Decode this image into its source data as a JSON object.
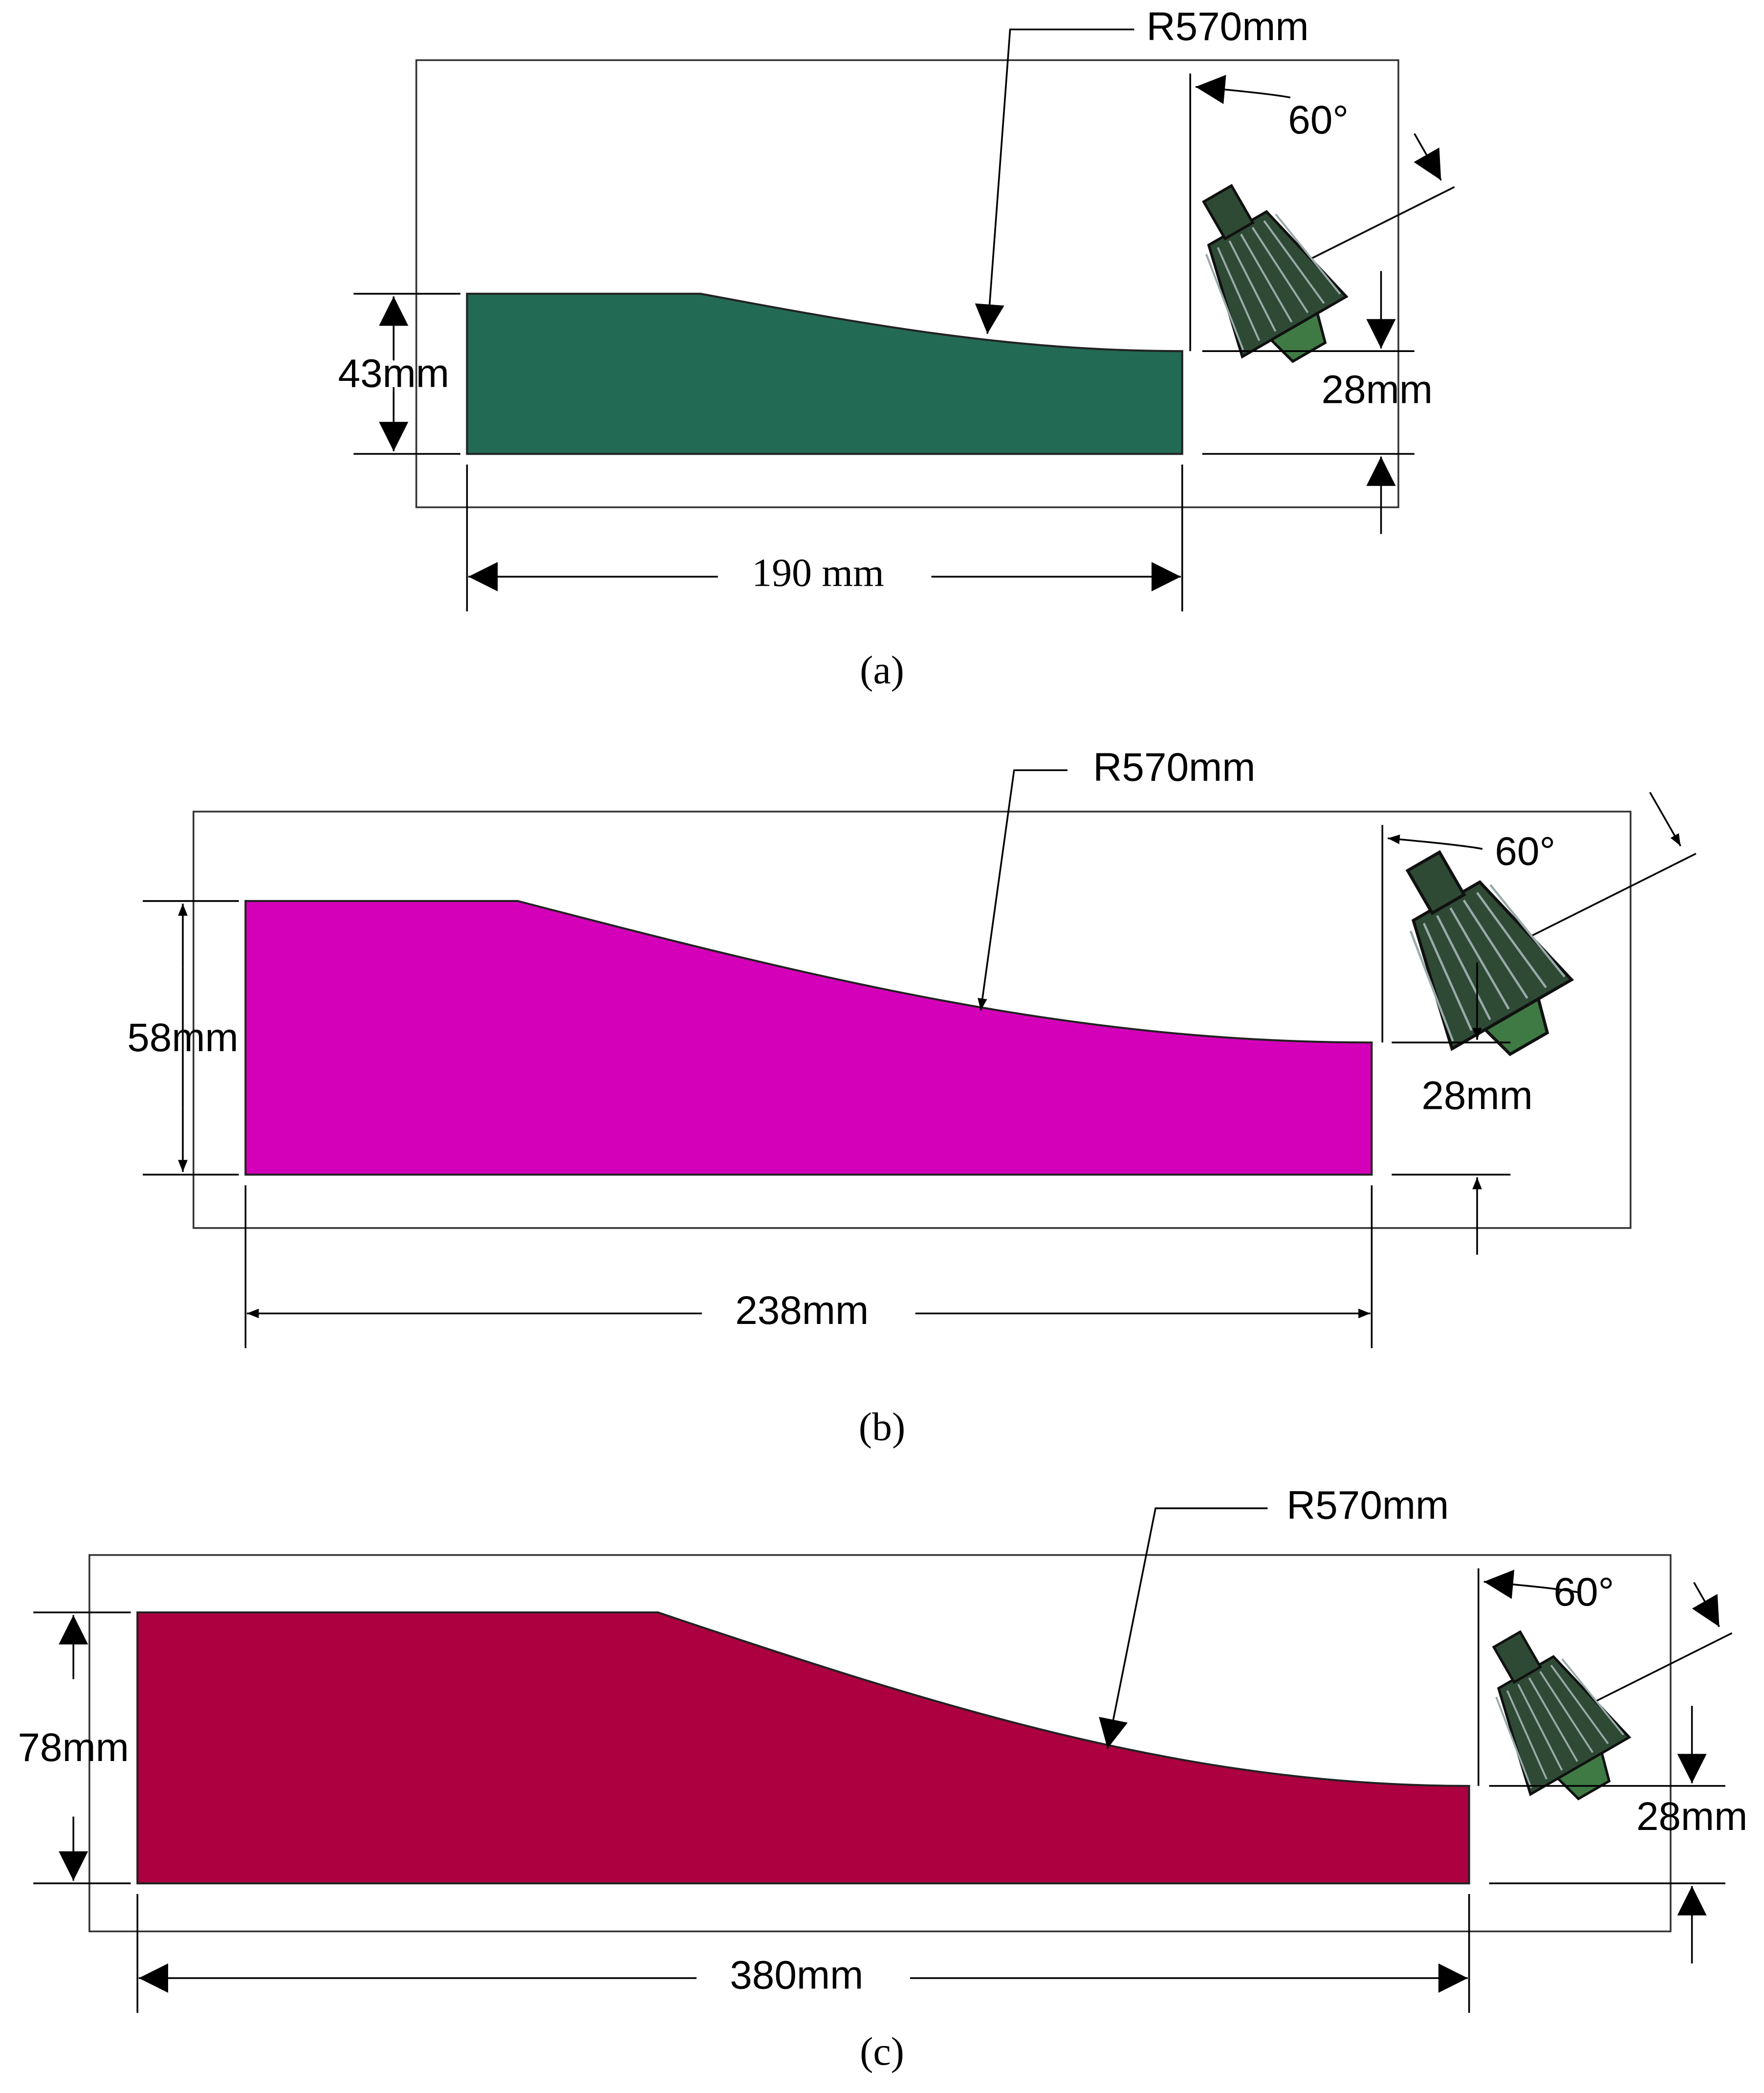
{
  "panels": [
    {
      "radius": "R570mm",
      "angle": "60°",
      "height": "43mm",
      "tip_height": "28mm",
      "length": "190 mm",
      "caption": "(a)"
    },
    {
      "radius": "R570mm",
      "angle": "60°",
      "height": "58mm",
      "tip_height": "28mm",
      "length": "238mm",
      "caption": "(b)"
    },
    {
      "radius": "R570mm",
      "angle": "60°",
      "height": "78mm",
      "tip_height": "28mm",
      "length": "380mm",
      "caption": "(c)"
    }
  ]
}
